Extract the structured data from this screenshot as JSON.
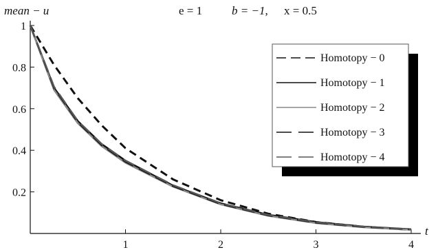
{
  "chart_data": {
    "type": "line",
    "ylabel": "mean − u",
    "xlabel": "t",
    "params": {
      "e": "e = 1",
      "b": "b = −1,",
      "x": "x =  0.5"
    },
    "xlim": [
      0,
      4
    ],
    "ylim": [
      0,
      1
    ],
    "x_ticks": [
      {
        "value": 1,
        "label": "1"
      },
      {
        "value": 2,
        "label": "2"
      },
      {
        "value": 3,
        "label": "3"
      },
      {
        "value": 4,
        "label": "4"
      }
    ],
    "y_ticks": [
      {
        "value": 0.2,
        "label": "0.2"
      },
      {
        "value": 0.4,
        "label": "0.4"
      },
      {
        "value": 0.6,
        "label": "0.6"
      },
      {
        "value": 0.8,
        "label": "0.8"
      },
      {
        "value": 1.0,
        "label": "1"
      }
    ],
    "legend": "top-right",
    "grid": false,
    "series": [
      {
        "name": "Homotopy − 0",
        "style": "dashed",
        "color": "#111111",
        "x": [
          0,
          0.25,
          0.5,
          0.75,
          1,
          1.5,
          2,
          2.5,
          3,
          3.5,
          4
        ],
        "y": [
          1,
          0.81,
          0.65,
          0.52,
          0.41,
          0.26,
          0.16,
          0.095,
          0.055,
          0.032,
          0.018
        ]
      },
      {
        "name": "Homotopy − 1",
        "style": "solid",
        "color": "#111111",
        "x": [
          0,
          0.25,
          0.5,
          0.75,
          1,
          1.5,
          2,
          2.5,
          3,
          3.5,
          4
        ],
        "y": [
          1,
          0.7,
          0.54,
          0.43,
          0.35,
          0.23,
          0.145,
          0.09,
          0.055,
          0.033,
          0.02
        ]
      },
      {
        "name": "Homotopy − 2",
        "style": "solid",
        "color": "#888888",
        "x": [
          0,
          0.25,
          0.5,
          0.75,
          1,
          1.5,
          2,
          2.5,
          3,
          3.5,
          4
        ],
        "y": [
          1,
          0.69,
          0.53,
          0.42,
          0.34,
          0.225,
          0.14,
          0.085,
          0.05,
          0.03,
          0.018
        ]
      },
      {
        "name": "Homotopy − 3",
        "style": "longdash",
        "color": "#111111",
        "x": [
          0,
          0.25,
          0.5,
          0.75,
          1,
          1.5,
          2,
          2.5,
          3,
          3.5,
          4
        ],
        "y": [
          1,
          0.7,
          0.535,
          0.425,
          0.345,
          0.228,
          0.142,
          0.087,
          0.052,
          0.031,
          0.019
        ]
      },
      {
        "name": "Homotopy − 4",
        "style": "longdash",
        "color": "#555555",
        "x": [
          0,
          0.25,
          0.5,
          0.75,
          1,
          1.5,
          2,
          2.5,
          3,
          3.5,
          4
        ],
        "y": [
          1,
          0.705,
          0.54,
          0.43,
          0.35,
          0.232,
          0.145,
          0.089,
          0.054,
          0.032,
          0.019
        ]
      }
    ]
  }
}
